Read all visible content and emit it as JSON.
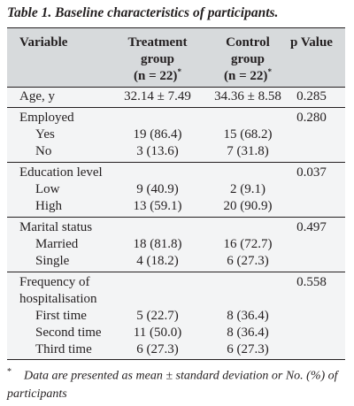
{
  "caption": "Table 1. Baseline characteristics of participants.",
  "headers": {
    "variable": "Variable",
    "treatment_line1": "Treatment",
    "treatment_line2": "group",
    "treatment_n": "(n = 22)",
    "control_line1": "Control",
    "control_line2": "group",
    "control_n": "(n = 22)",
    "asterisk": "*",
    "pvalue": "p Value"
  },
  "rows": {
    "age": {
      "label": "Age, y",
      "treatment": "32.14 ± 7.49",
      "control": "34.36 ± 8.58",
      "p": "0.285"
    },
    "employed": {
      "label": "Employed",
      "p": "0.280",
      "yes": {
        "label": "Yes",
        "treatment": "19 (86.4)",
        "control": "15 (68.2)"
      },
      "no": {
        "label": "No",
        "treatment": "3 (13.6)",
        "control": "7 (31.8)"
      }
    },
    "education": {
      "label": "Education level",
      "p": "0.037",
      "low": {
        "label": "Low",
        "treatment": "9 (40.9)",
        "control": "2 (9.1)"
      },
      "high": {
        "label": "High",
        "treatment": "13 (59.1)",
        "control": "20 (90.9)"
      }
    },
    "marital": {
      "label": "Marital status",
      "p": "0.497",
      "married": {
        "label": "Married",
        "treatment": "18 (81.8)",
        "control": "16 (72.7)"
      },
      "single": {
        "label": "Single",
        "treatment": "4 (18.2)",
        "control": "6 (27.3)"
      }
    },
    "hospitalisation": {
      "label_line1": "Frequency of",
      "label_line2": "hospitalisation",
      "p": "0.558",
      "first": {
        "label": "First time",
        "treatment": "5 (22.7)",
        "control": "8 (36.4)"
      },
      "second": {
        "label": "Second time",
        "treatment": "11 (50.0)",
        "control": "8 (36.4)"
      },
      "third": {
        "label": "Third time",
        "treatment": "6 (27.3)",
        "control": "6 (27.3)"
      }
    }
  },
  "footnote": {
    "mark": "*",
    "text": "Data are presented as mean ± standard deviation or No. (%) of participants"
  }
}
